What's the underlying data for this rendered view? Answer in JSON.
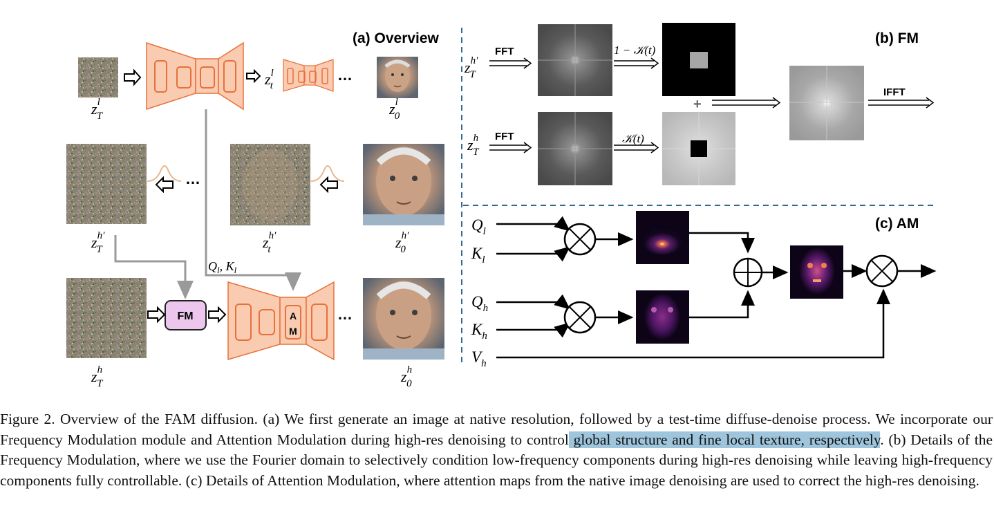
{
  "panels": {
    "overview": {
      "title": "(a) Overview",
      "labels": {
        "zTl": "z",
        "zTl_sup": "l",
        "zTl_sub": "T",
        "ztl": "z",
        "ztl_sup": "l",
        "ztl_sub": "t",
        "z0l": "z",
        "z0l_sup": "l",
        "z0l_sub": "0",
        "zThp": "z",
        "zThp_sup": "h′",
        "zThp_sub": "T",
        "zthp": "z",
        "zthp_sup": "h′",
        "zthp_sub": "t",
        "z0hp": "z",
        "z0hp_sup": "h′",
        "z0hp_sub": "0",
        "zTh": "z",
        "zTh_sup": "h",
        "zTh_sub": "T",
        "z0h": "z",
        "z0h_sup": "h",
        "z0h_sub": "0",
        "qk": "Q",
        "qk_sub": "l",
        "qk_rest": ", K",
        "qk_sub2": "l"
      },
      "ellipsis": "…",
      "fm_box": "FM",
      "am_box_1": "A",
      "am_box_2": "M"
    },
    "fm": {
      "title": "(b) FM",
      "fft_1": "FFT",
      "fft_2": "FFT",
      "ifft": "IFFT",
      "kernel_low": "1 − 𝒦(t)",
      "kernel_high": "𝒦(t)",
      "plus": "+"
    },
    "am": {
      "title": "(c) AM",
      "q_l": "Q",
      "q_l_sub": "l",
      "k_l": "K",
      "k_l_sub": "l",
      "q_h": "Q",
      "q_h_sub": "h",
      "k_h": "K",
      "k_h_sub": "h",
      "v_h": "V",
      "v_h_sub": "h"
    }
  },
  "caption": {
    "part1": "Figure 2.  Overview of the FAM diffusion.  (a) We first generate an image at native resolution, followed by a test-time diffuse-denoise process. We incorporate our Frequency Modulation module and Attention Modulation during high-res denoising to control",
    "highlight": " global structure and fine local texture, respectively",
    "part2": ".  (b) Details of the Frequency Modulation, where we use the Fourier domain to selectively condition low-frequency components during high-res denoising while leaving high-frequency components fully controllable. (c) Details of Attention Modulation, where attention maps from the native image denoising are used to correct the high-res denoising."
  },
  "colors": {
    "unet_fill": "#f9cbb0",
    "unet_stroke": "#e8703a",
    "fm_fill": "#ecc6ec",
    "divider": "#2f6b8f",
    "highlight": "#9ec5dc"
  }
}
